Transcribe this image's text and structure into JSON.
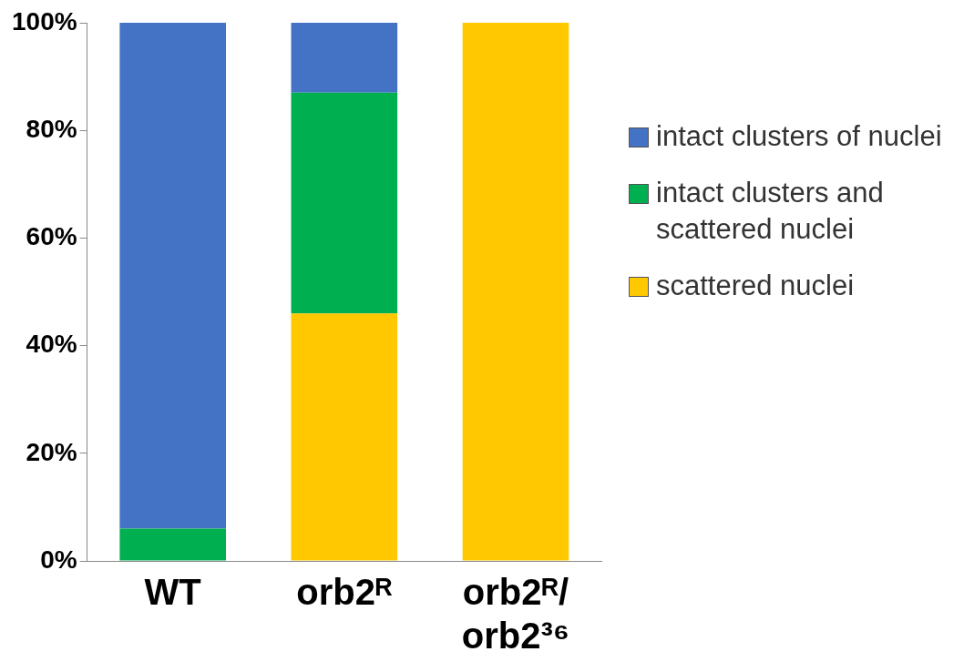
{
  "chart_data": {
    "type": "bar",
    "stacked": true,
    "categories": [
      "WT",
      "orb2ᴿ",
      "orb2ᴿ/orb2³⁶"
    ],
    "series": [
      {
        "name": "scattered nuclei",
        "color": "#ffc800",
        "values": [
          0,
          46,
          100
        ]
      },
      {
        "name": "intact clusters and scattered nuclei",
        "color": "#00b050",
        "values": [
          6,
          41,
          0
        ]
      },
      {
        "name": "intact clusters of nuclei",
        "color": "#4472c4",
        "values": [
          94,
          13,
          0
        ]
      }
    ],
    "ylim": [
      0,
      100
    ],
    "yticks": [
      {
        "value": 0,
        "label": "0%"
      },
      {
        "value": 20,
        "label": "20%"
      },
      {
        "value": 40,
        "label": "40%"
      },
      {
        "value": 60,
        "label": "60%"
      },
      {
        "value": 80,
        "label": "80%"
      },
      {
        "value": 100,
        "label": "100%"
      }
    ],
    "grid": false,
    "legend": "right"
  }
}
